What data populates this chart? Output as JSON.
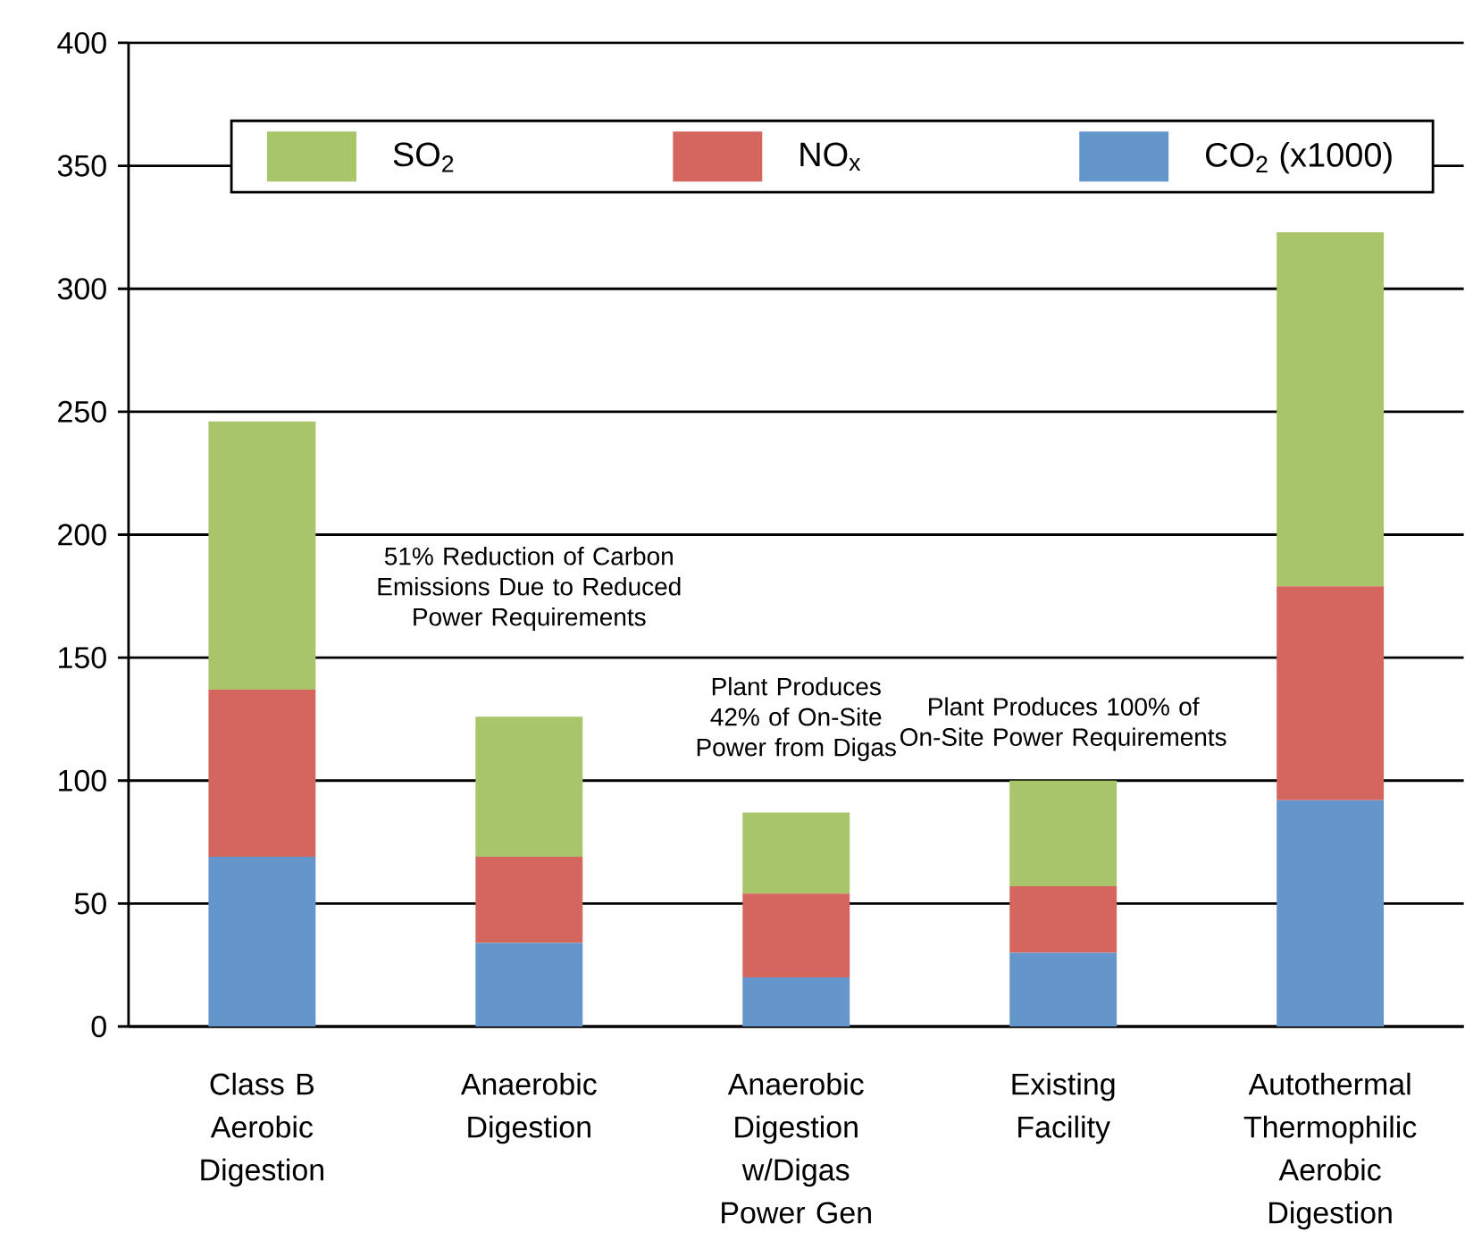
{
  "chart_data": {
    "type": "bar",
    "stacked": true,
    "categories": [
      "Class B Aerobic Digestion",
      "Anaerobic Digestion",
      "Anaerobic Digestion w/Digas Power Gen",
      "Existing Facility",
      "Autothermal Thermophilic Aerobic Digestion"
    ],
    "series": [
      {
        "name": "CO$_{2}$ (x1000)",
        "color": "#6496cb",
        "values": [
          69,
          34,
          20,
          30,
          92
        ]
      },
      {
        "name": "NO$_{x}$",
        "color": "#d4665e",
        "values": [
          68,
          35,
          34,
          27,
          87
        ]
      },
      {
        "name": "SO$_{2}$",
        "color": "#a9c56a",
        "values": [
          109,
          57,
          33,
          43,
          144
        ]
      }
    ],
    "ylim": [
      0,
      400
    ],
    "yticks": [
      0,
      50,
      100,
      150,
      200,
      250,
      300,
      350,
      400
    ],
    "grid": "y",
    "legend": "top",
    "annotations": [
      "51% Reduction of Carbon Emissions Due to Reduced Power Requirements",
      "Plant Produces 42% of On-Site Power from Digas",
      "Plant Produces 100% of On-Site Power Requirements"
    ]
  }
}
